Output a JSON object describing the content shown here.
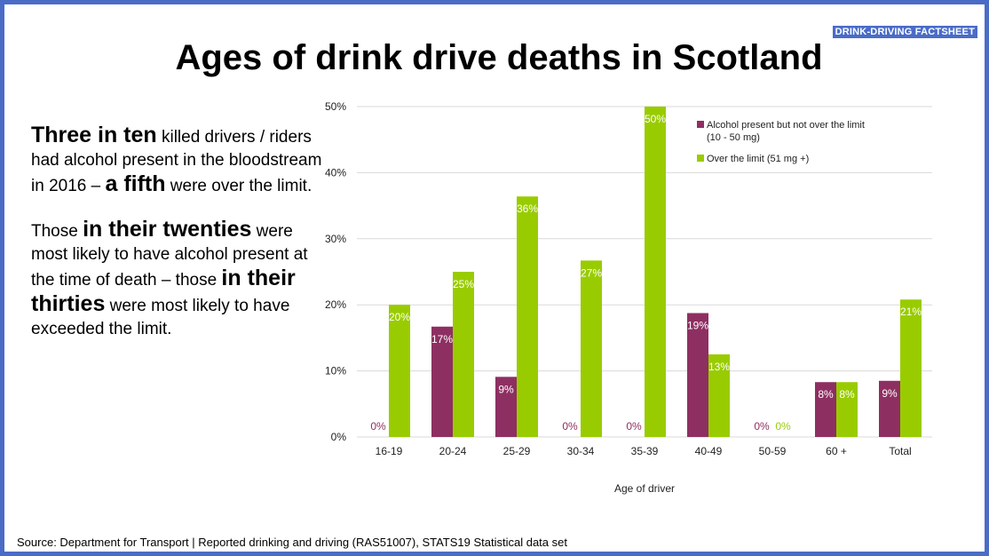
{
  "badge": "DRINK-DRIVING FACTSHEET",
  "title": "Ages of drink drive deaths in Scotland",
  "body": {
    "p1_bold1": "Three in ten",
    "p1_text1": " killed drivers / riders had alcohol present in the bloodstream in 2016 – ",
    "p1_bold2": "a fifth",
    "p1_text2": " were over the limit.",
    "p2_text1": "Those ",
    "p2_bold1": "in their twenties",
    "p2_text2": " were most likely to have alcohol present at the time of death – those ",
    "p2_bold2": "in their thirties",
    "p2_text3": " were most likely to have exceeded the limit."
  },
  "source": "Source: Department for Transport | Reported drinking and driving (RAS51007), STATS19 Statistical data set",
  "colors": {
    "series1": "#8e2f62",
    "series2": "#99cc00",
    "border": "#4a6cc7",
    "grid": "#d9d9d9"
  },
  "chart_data": {
    "type": "bar",
    "categories": [
      "16-19",
      "20-24",
      "25-29",
      "30-34",
      "35-39",
      "40-49",
      "50-59",
      "60 +",
      "Total"
    ],
    "series": [
      {
        "name": "Alcohol present but not over the limit (10 - 50 mg)",
        "values": [
          0,
          16.7,
          9.1,
          0,
          0,
          18.75,
          0,
          8.3,
          8.5
        ],
        "labels": [
          "0%",
          "17%",
          "9%",
          "0%",
          "0%",
          "19%",
          "0%",
          "8%",
          "9%"
        ]
      },
      {
        "name": "Over the limit (51 mg +)",
        "values": [
          20,
          25,
          36.4,
          26.7,
          50,
          12.5,
          0,
          8.3,
          20.8
        ],
        "labels": [
          "20%",
          "25%",
          "36%",
          "27%",
          "50%",
          "13%",
          "0%",
          "8%",
          "21%"
        ]
      }
    ],
    "legend": [
      "Alcohol present but not over the limit",
      "(10 - 50 mg)",
      "Over the limit (51 mg +)"
    ],
    "yticks": [
      "0%",
      "10%",
      "20%",
      "30%",
      "40%",
      "50%"
    ],
    "ylim": [
      0,
      50
    ],
    "xlabel": "Age of driver",
    "ylabel": "",
    "grid": true,
    "legend_position": "top-right"
  }
}
